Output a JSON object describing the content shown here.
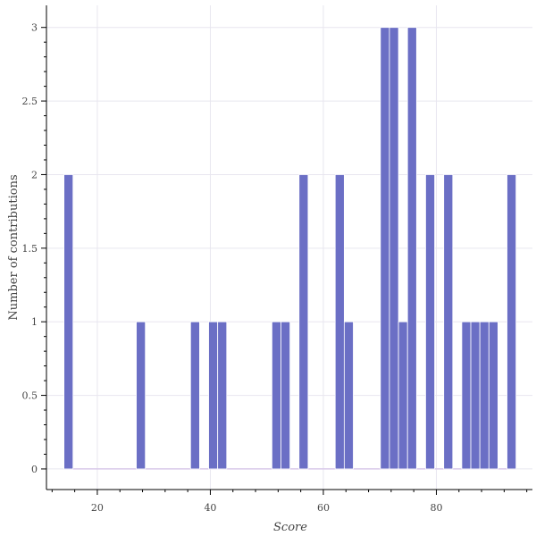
{
  "chart_data": {
    "type": "bar",
    "title": "",
    "xlabel": "Score",
    "ylabel": "Number of contributions",
    "xlim": [
      11,
      97
    ],
    "ylim": [
      -0.14,
      3.15
    ],
    "x_ticks": [
      20,
      40,
      60,
      80
    ],
    "y_ticks": [
      0,
      0.5,
      1,
      1.5,
      2,
      2.5,
      3
    ],
    "y_tick_labels": [
      "0",
      "0.5",
      "1",
      "1.5",
      "2",
      "2.5",
      "3"
    ],
    "x_tick_labels": [
      "20",
      "40",
      "60",
      "80"
    ],
    "bin_width": 1.6,
    "grid": true,
    "color": "#6b6fc5",
    "bars": [
      {
        "x": 14.9,
        "count": 2
      },
      {
        "x": 27.7,
        "count": 1
      },
      {
        "x": 37.3,
        "count": 1
      },
      {
        "x": 40.5,
        "count": 1
      },
      {
        "x": 42.1,
        "count": 1
      },
      {
        "x": 51.7,
        "count": 1
      },
      {
        "x": 53.3,
        "count": 1
      },
      {
        "x": 56.5,
        "count": 2
      },
      {
        "x": 62.9,
        "count": 2
      },
      {
        "x": 64.5,
        "count": 1
      },
      {
        "x": 70.9,
        "count": 3
      },
      {
        "x": 72.5,
        "count": 3
      },
      {
        "x": 74.1,
        "count": 1
      },
      {
        "x": 75.7,
        "count": 3
      },
      {
        "x": 78.9,
        "count": 2
      },
      {
        "x": 82.1,
        "count": 2
      },
      {
        "x": 85.3,
        "count": 1
      },
      {
        "x": 86.9,
        "count": 1
      },
      {
        "x": 88.5,
        "count": 1
      },
      {
        "x": 90.1,
        "count": 1
      },
      {
        "x": 93.3,
        "count": 2
      }
    ]
  }
}
